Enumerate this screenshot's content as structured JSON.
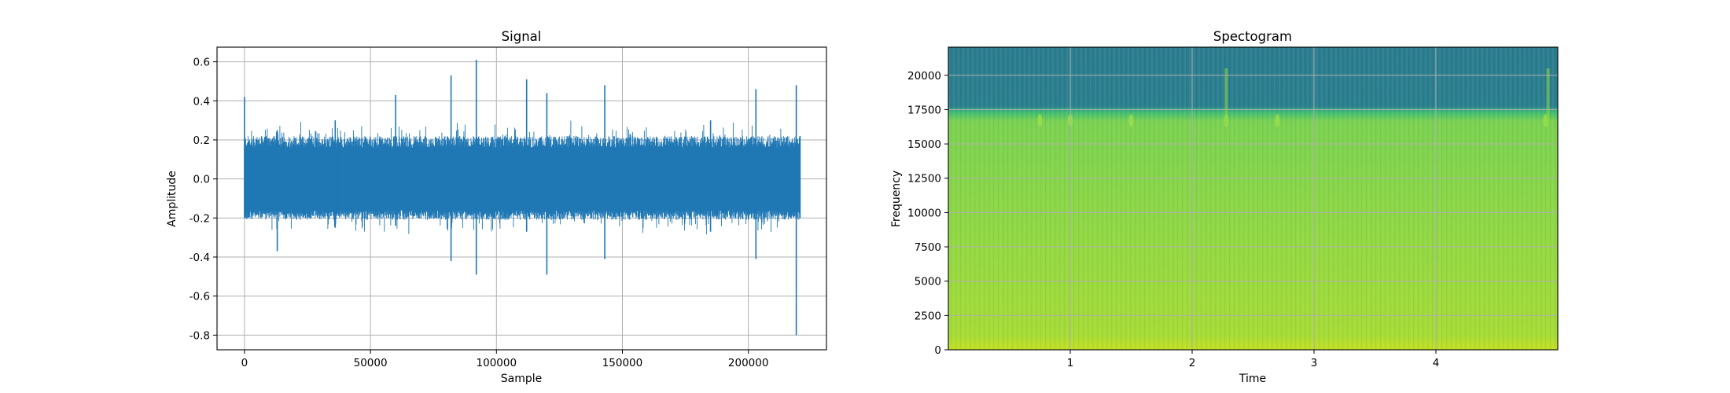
{
  "chart_data": [
    {
      "type": "line",
      "title": "Signal",
      "xlabel": "Sample",
      "ylabel": "Amplitude",
      "xlim": [
        -10900,
        231000
      ],
      "ylim": [
        -0.875,
        0.675
      ],
      "xticks": [
        0,
        50000,
        100000,
        150000,
        200000
      ],
      "yticks": [
        -0.8,
        -0.6,
        -0.4,
        -0.2,
        0.0,
        0.2,
        0.4,
        0.6
      ],
      "grid": true,
      "color": "#1f77b4",
      "n_samples": 220500,
      "envelope": [
        {
          "x": 0,
          "lo": -0.2,
          "hi": 0.42
        },
        {
          "x": 13000,
          "lo": -0.37,
          "hi": 0.25
        },
        {
          "x": 36000,
          "lo": -0.25,
          "hi": 0.3
        },
        {
          "x": 60000,
          "lo": -0.24,
          "hi": 0.43
        },
        {
          "x": 82000,
          "lo": -0.42,
          "hi": 0.53
        },
        {
          "x": 92000,
          "lo": -0.49,
          "hi": 0.61
        },
        {
          "x": 112000,
          "lo": -0.27,
          "hi": 0.51
        },
        {
          "x": 120000,
          "lo": -0.49,
          "hi": 0.44
        },
        {
          "x": 143000,
          "lo": -0.41,
          "hi": 0.48
        },
        {
          "x": 185000,
          "lo": -0.27,
          "hi": 0.3
        },
        {
          "x": 203000,
          "lo": -0.41,
          "hi": 0.46
        },
        {
          "x": 219000,
          "lo": -0.8,
          "hi": 0.48
        },
        {
          "x": 220500,
          "lo": -0.2,
          "hi": 0.22
        }
      ]
    },
    {
      "type": "heatmap",
      "title": "Spectogram",
      "xlabel": "Time",
      "ylabel": "Frequency",
      "xlim": [
        0,
        5
      ],
      "ylim": [
        0,
        22050
      ],
      "xticks": [
        1,
        2,
        3,
        4
      ],
      "yticks": [
        0,
        2500,
        5000,
        7500,
        10000,
        12500,
        15000,
        17500,
        20000
      ],
      "grid": true,
      "colormap": "viridis",
      "cutoff_frequency": 16200,
      "hot_spots_time": [
        0.75,
        1.0,
        1.5,
        2.28,
        2.7,
        4.9
      ]
    }
  ]
}
